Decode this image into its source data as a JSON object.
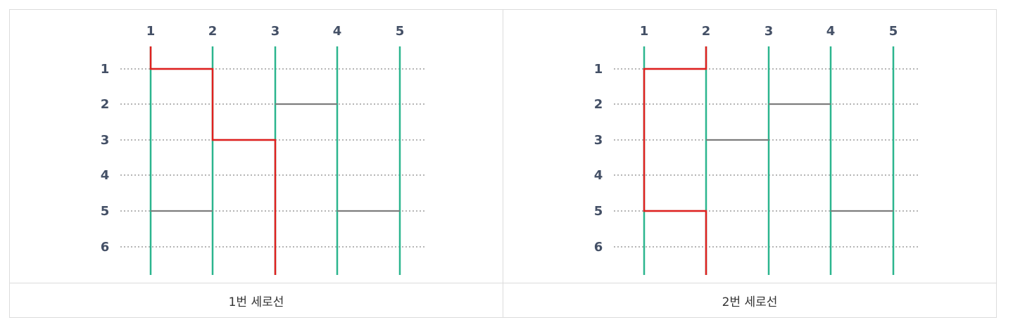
{
  "colors": {
    "vertical_line": "#2bb58e",
    "dotted_row": "#b5b5b5",
    "rung": "#7d7d7d",
    "path": "#e0201f",
    "label": "#445066"
  },
  "column_labels": [
    "1",
    "2",
    "3",
    "4",
    "5"
  ],
  "row_labels": [
    "1",
    "2",
    "3",
    "4",
    "5",
    "6"
  ],
  "panels": [
    {
      "caption": "1번 세로선",
      "start_column": 1,
      "rungs": [
        {
          "row": 1,
          "from": 1,
          "to": 2,
          "highlighted": true
        },
        {
          "row": 2,
          "from": 3,
          "to": 4,
          "highlighted": false
        },
        {
          "row": 3,
          "from": 2,
          "to": 3,
          "highlighted": true
        },
        {
          "row": 5,
          "from": 1,
          "to": 2,
          "highlighted": false
        },
        {
          "row": 5,
          "from": 4,
          "to": 5,
          "highlighted": false
        }
      ]
    },
    {
      "caption": "2번 세로선",
      "start_column": 2,
      "rungs": [
        {
          "row": 1,
          "from": 1,
          "to": 2,
          "highlighted": true
        },
        {
          "row": 2,
          "from": 3,
          "to": 4,
          "highlighted": false
        },
        {
          "row": 3,
          "from": 2,
          "to": 3,
          "highlighted": false
        },
        {
          "row": 5,
          "from": 1,
          "to": 2,
          "highlighted": true
        },
        {
          "row": 5,
          "from": 4,
          "to": 5,
          "highlighted": false
        }
      ]
    }
  ]
}
